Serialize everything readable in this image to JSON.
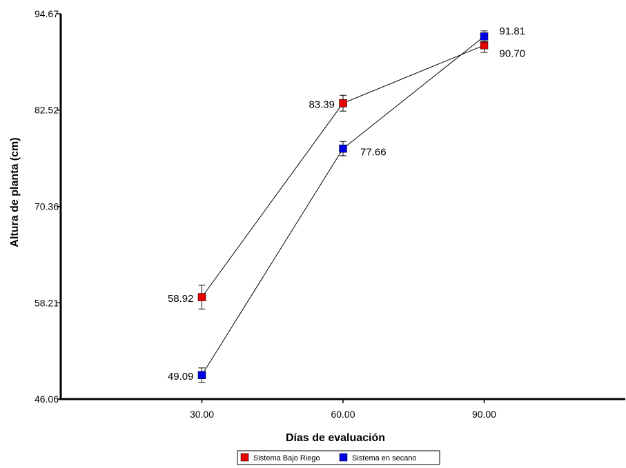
{
  "chart_data": {
    "type": "line",
    "title": "",
    "xlabel": "Días de evaluación",
    "ylabel": "Altura de planta (cm)",
    "x": [
      30,
      60,
      90
    ],
    "x_tick_labels": [
      "30.00",
      "60.00",
      "90.00"
    ],
    "xlim": [
      0,
      120
    ],
    "y_ticks": [
      46.06,
      58.21,
      70.36,
      82.52,
      94.67
    ],
    "y_tick_labels": [
      "46.06",
      "58.21",
      "70.36",
      "82.52",
      "94.67"
    ],
    "ylim": [
      46.06,
      94.67
    ],
    "grid": false,
    "legend_position": "bottom-center",
    "error_bars": true,
    "series": [
      {
        "name": "Sistema Bajo Riego",
        "color": "#e60000",
        "values": [
          58.92,
          83.39,
          90.7
        ],
        "value_labels": [
          "58.92",
          "83.39",
          "90.70"
        ],
        "errors": [
          1.5,
          1.0,
          0.9
        ]
      },
      {
        "name": "Sistema en secano",
        "color": "#0000e6",
        "values": [
          49.09,
          77.66,
          91.81
        ],
        "value_labels": [
          "49.09",
          "77.66",
          "91.81"
        ],
        "errors": [
          0.9,
          0.9,
          0.7
        ]
      }
    ]
  }
}
